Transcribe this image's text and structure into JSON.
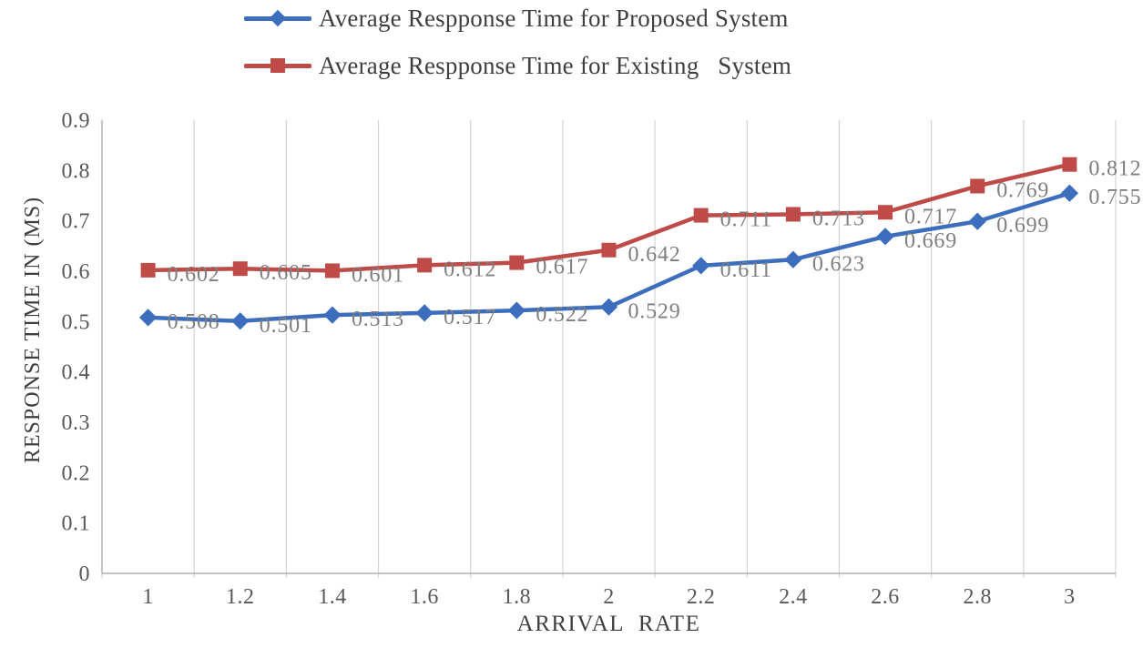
{
  "chart_data": {
    "type": "line",
    "title": "",
    "xlabel": "ARRIVAL RATE",
    "ylabel": "RESPONSE TIME IN (MS)",
    "x": [
      1,
      1.2,
      1.4,
      1.6,
      1.8,
      2,
      2.2,
      2.4,
      2.6,
      2.8,
      3
    ],
    "xticks": [
      "1",
      "1.2",
      "1.4",
      "1.6",
      "1.8",
      "2",
      "2.2",
      "2.4",
      "2.6",
      "2.8",
      "3"
    ],
    "yticks": [
      "0",
      "0.1",
      "0.2",
      "0.3",
      "0.4",
      "0.5",
      "0.6",
      "0.7",
      "0.8",
      "0.9"
    ],
    "ylim": [
      0,
      0.9
    ],
    "grid": "vertical",
    "legend_position": "top-left",
    "series": [
      {
        "name": "Average Respponse Time for Proposed System",
        "marker": "diamond",
        "color": "#3d6ebe",
        "values": [
          0.508,
          0.501,
          0.513,
          0.517,
          0.522,
          0.529,
          0.611,
          0.623,
          0.669,
          0.699,
          0.755
        ],
        "labels": [
          "0.508",
          "0.501",
          "0.513",
          "0.517",
          "0.522",
          "0.529",
          "0.611",
          "0.623",
          "0.669",
          "0.699",
          "0.755"
        ]
      },
      {
        "name": "Average Respponse Time for Existing   System",
        "marker": "square",
        "color": "#be4b48",
        "values": [
          0.602,
          0.605,
          0.601,
          0.612,
          0.617,
          0.642,
          0.711,
          0.713,
          0.717,
          0.769,
          0.812
        ],
        "labels": [
          "0.602",
          "0.605",
          "0.601",
          "0.612",
          "0.617",
          "0.642",
          "0.711",
          "0.713",
          "0.717",
          "0.769",
          "0.812"
        ]
      }
    ],
    "colors": {
      "grid": "#d4d4d4",
      "axis": "#b0b0b0",
      "tick_text": "#595959",
      "data_label_text": "#7f7f7f",
      "legend_text": "#3f3f3f"
    }
  }
}
